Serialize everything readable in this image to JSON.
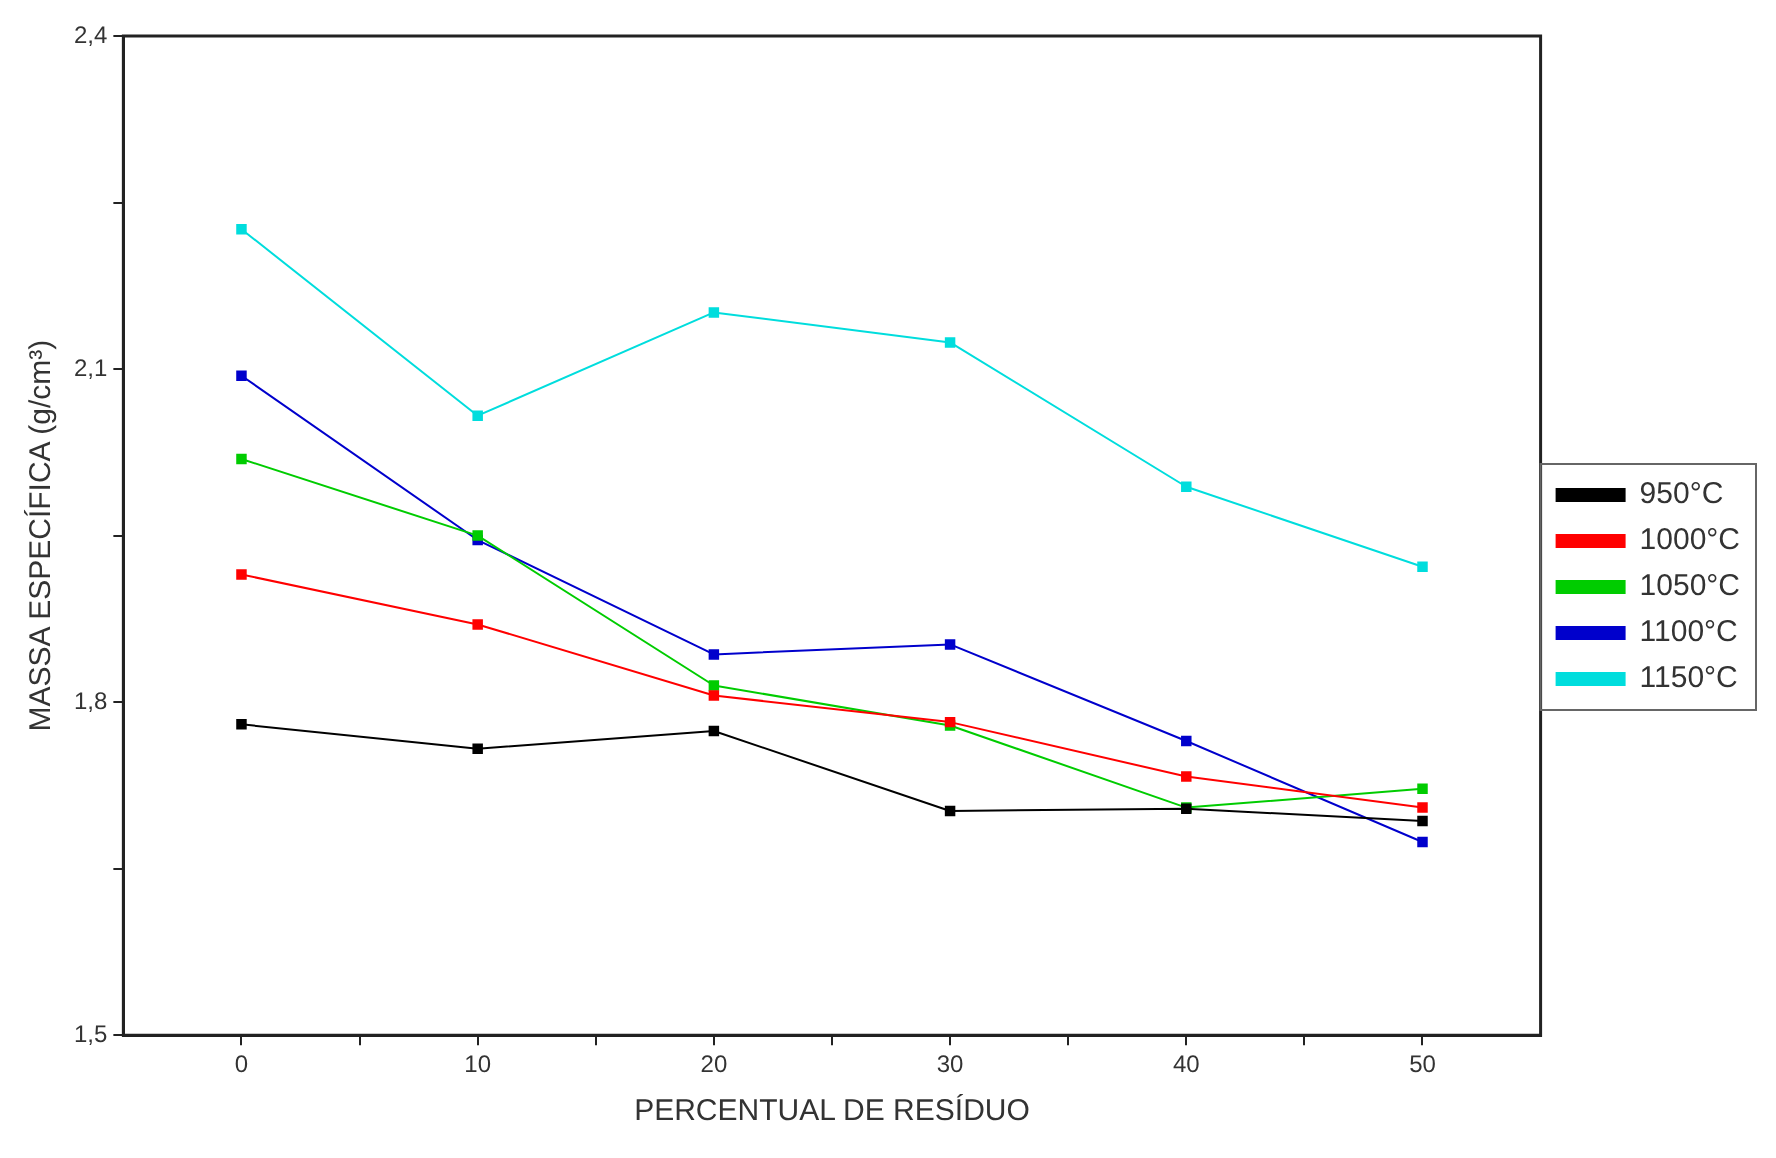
{
  "chart_data": {
    "type": "line",
    "xlabel": "PERCENTUAL DE RESÍDUO",
    "ylabel": "MASSA ESPECÍFICA (g/cm³)",
    "x": [
      0,
      10,
      20,
      30,
      40,
      50
    ],
    "series": [
      {
        "name": "950°C",
        "color": "#000000",
        "values": [
          1.78,
          1.758,
          1.774,
          1.702,
          1.704,
          1.693
        ]
      },
      {
        "name": "1000°C",
        "color": "#ff0000",
        "values": [
          1.915,
          1.87,
          1.806,
          1.782,
          1.733,
          1.705
        ]
      },
      {
        "name": "1050°C",
        "color": "#00cc00",
        "values": [
          2.019,
          1.95,
          1.815,
          1.779,
          1.705,
          1.722
        ]
      },
      {
        "name": "1100°C",
        "color": "#0000cc",
        "values": [
          2.094,
          1.946,
          1.843,
          1.852,
          1.765,
          1.674
        ]
      },
      {
        "name": "1150°C",
        "color": "#00dddd",
        "values": [
          2.226,
          2.058,
          2.151,
          2.124,
          1.994,
          1.922
        ]
      }
    ],
    "xlim": [
      -5,
      55
    ],
    "xticks": [
      0,
      {
        "value": 5,
        "label": null
      },
      10,
      {
        "value": 15,
        "label": null
      },
      20,
      {
        "value": 25,
        "label": null
      },
      30,
      {
        "value": 35,
        "label": null
      },
      40,
      {
        "value": 45,
        "label": null
      },
      50
    ],
    "ylim": [
      1.5,
      2.4
    ],
    "yticks": [
      {
        "value": 1.5,
        "label": "1,5"
      },
      {
        "value": 1.65,
        "label": null
      },
      {
        "value": 1.8,
        "label": "1,8"
      },
      {
        "value": 1.95,
        "label": null
      },
      {
        "value": 2.1,
        "label": "2,1"
      },
      {
        "value": 2.25,
        "label": null
      },
      {
        "value": 2.4,
        "label": "2,4"
      }
    ],
    "grid": false,
    "legend": "right",
    "marker": "square",
    "line_style": "solid"
  }
}
